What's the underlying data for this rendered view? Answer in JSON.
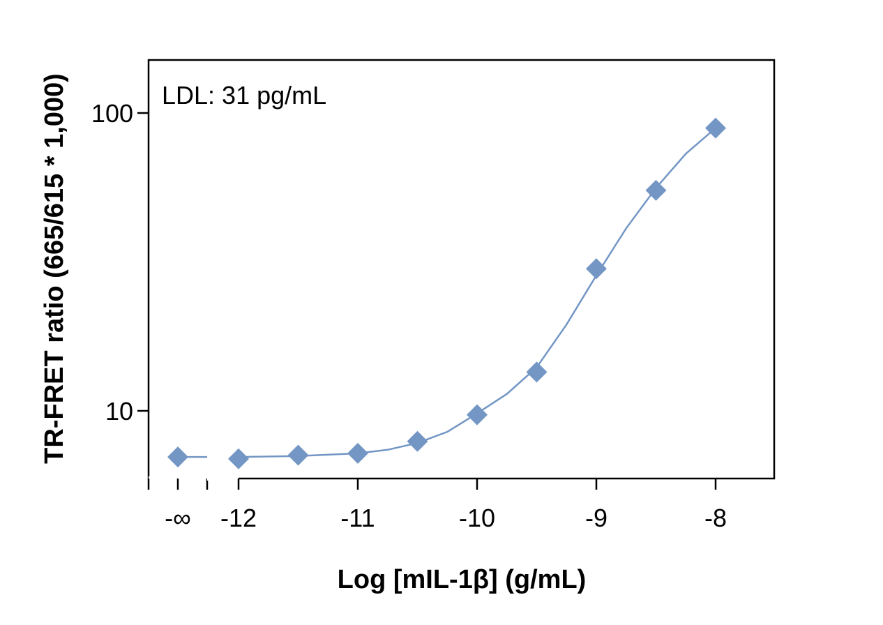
{
  "chart_data": {
    "type": "scatter",
    "title": "",
    "xlabel": "Log [mIL-1β] (g/mL)",
    "ylabel": "TR-FRET ratio (665/615 * 1,000)",
    "annotation": "LDL: 31 pg/mL",
    "y_scale": "log",
    "xlim": [
      -12.75,
      -7.5
    ],
    "ylim": [
      6,
      150
    ],
    "x_ticks": [
      {
        "value": "-inf",
        "label": "-∞"
      },
      {
        "value": -12,
        "label": "-12"
      },
      {
        "value": -11,
        "label": "-11"
      },
      {
        "value": -10,
        "label": "-10"
      },
      {
        "value": -9,
        "label": "-9"
      },
      {
        "value": -8,
        "label": "-8"
      }
    ],
    "y_ticks": [
      {
        "value": 10,
        "label": "10"
      },
      {
        "value": 100,
        "label": "100"
      }
    ],
    "axis_break": "between -∞ and -12",
    "marker": "diamond",
    "color": "#7396c5",
    "grid": false,
    "legend": "none",
    "points": [
      {
        "x": "-inf",
        "y": 7.0
      },
      {
        "x": -12,
        "y": 6.9
      },
      {
        "x": -11.5,
        "y": 7.1
      },
      {
        "x": -11,
        "y": 7.2
      },
      {
        "x": -10.5,
        "y": 7.9
      },
      {
        "x": -10,
        "y": 9.7
      },
      {
        "x": -9.5,
        "y": 13.5
      },
      {
        "x": -9,
        "y": 30
      },
      {
        "x": -8.5,
        "y": 55
      },
      {
        "x": -8,
        "y": 89
      }
    ],
    "fit_curve": {
      "x": [
        -12,
        -11.5,
        -11,
        -10.75,
        -10.5,
        -10.25,
        -10,
        -9.75,
        -9.5,
        -9.25,
        -9,
        -8.75,
        -8.5,
        -8.25,
        -8
      ],
      "y": [
        7.0,
        7.05,
        7.2,
        7.4,
        7.8,
        8.5,
        9.8,
        11.4,
        14.0,
        19.5,
        28.5,
        41.0,
        56.0,
        73.0,
        89.0
      ]
    }
  }
}
